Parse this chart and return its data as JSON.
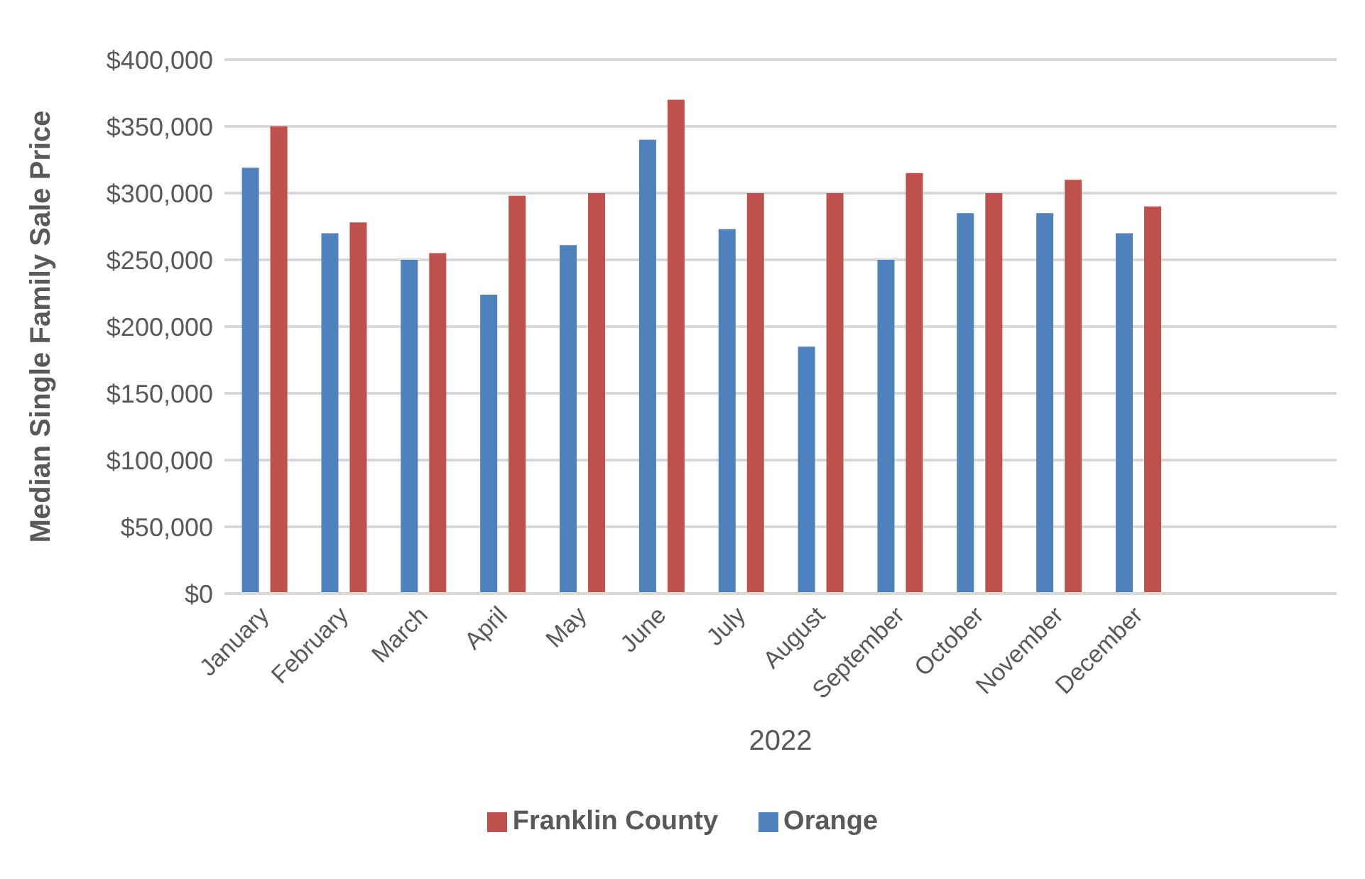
{
  "chart_data": {
    "type": "bar",
    "xlabel": "2022",
    "ylabel": "Median Single Family Sale Price",
    "categories": [
      "January",
      "February",
      "March",
      "April",
      "May",
      "June",
      "July",
      "August",
      "September",
      "October",
      "November",
      "December",
      null,
      null
    ],
    "series": [
      {
        "name": "Orange",
        "color": "#4f81bd",
        "values": [
          319000,
          270000,
          250000,
          224000,
          261000,
          340000,
          273000,
          185000,
          250000,
          285000,
          285000,
          270000,
          null,
          null
        ]
      },
      {
        "name": "Franklin County",
        "color": "#c0504d",
        "values": [
          350000,
          278000,
          255000,
          298000,
          300000,
          370000,
          300000,
          300000,
          315000,
          300000,
          310000,
          290000,
          null,
          null
        ]
      }
    ],
    "ylim": [
      0,
      400000
    ],
    "yticks": [
      {
        "value": 0,
        "label": "$0"
      },
      {
        "value": 50000,
        "label": "$50,000"
      },
      {
        "value": 100000,
        "label": "$100,000"
      },
      {
        "value": 150000,
        "label": "$150,000"
      },
      {
        "value": 200000,
        "label": "$200,000"
      },
      {
        "value": 250000,
        "label": "$250,000"
      },
      {
        "value": 300000,
        "label": "$300,000"
      },
      {
        "value": 350000,
        "label": "$350,000"
      },
      {
        "value": 400000,
        "label": "$400,000"
      }
    ],
    "grid": "y",
    "legend": "bottom"
  }
}
